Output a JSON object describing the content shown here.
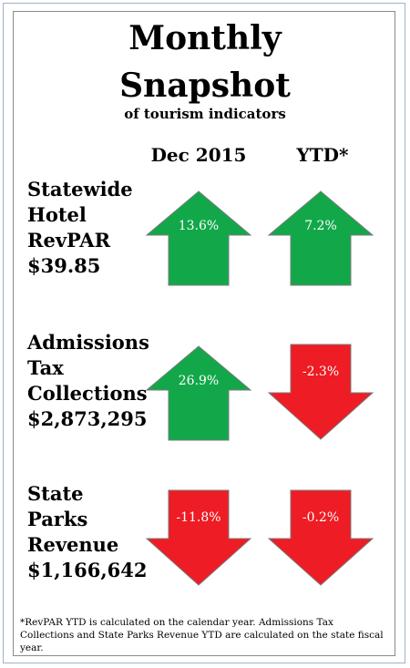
{
  "title_line1": "Monthly",
  "title_line2": "Snapshot",
  "subtitle": "of tourism indicators",
  "column_headers": [
    "Dec 2015",
    "YTD*"
  ],
  "colors": {
    "up": "#12a84a",
    "down": "#ee1c24",
    "outline": "#7a7a7a"
  },
  "rows": [
    {
      "label_lines": [
        "Statewide",
        "Hotel",
        "RevPAR",
        "$39.85"
      ],
      "month": {
        "direction": "up",
        "value": "13.6%"
      },
      "ytd": {
        "direction": "up",
        "value": "7.2%"
      }
    },
    {
      "label_lines": [
        "Admissions",
        "Tax",
        "Collections",
        "$2,873,295"
      ],
      "month": {
        "direction": "up",
        "value": "26.9%"
      },
      "ytd": {
        "direction": "down",
        "value": "-2.3%"
      }
    },
    {
      "label_lines": [
        "State",
        "Parks",
        "Revenue",
        "$1,166,642"
      ],
      "month": {
        "direction": "down",
        "value": "-11.8%"
      },
      "ytd": {
        "direction": "down",
        "value": "-0.2%"
      }
    }
  ],
  "footnote": "*RevPAR YTD is calculated on the calendar year. Admissions Tax Collections and State Parks Revenue YTD are calculated on the state fiscal year."
}
